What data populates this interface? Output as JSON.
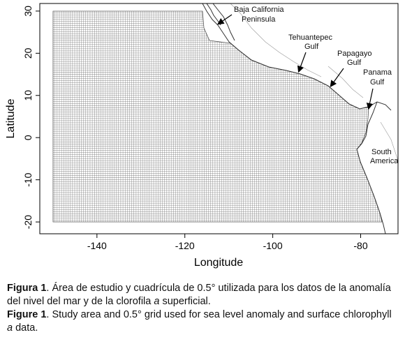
{
  "chart_data": {
    "type": "map",
    "xlabel": "Longitude",
    "ylabel": "Latitude",
    "xlim": [
      -153,
      -71.5
    ],
    "ylim": [
      -22.8,
      31.8
    ],
    "xticks": [
      -140,
      -120,
      -100,
      -80
    ],
    "yticks": [
      -20,
      -10,
      0,
      10,
      20,
      30
    ],
    "annotations": [
      "Baja California",
      "Peninsula",
      "Tehuantepec",
      "Gulf",
      "Papagayo",
      "Gulf",
      "Panama",
      "Gulf",
      "South",
      "America"
    ]
  },
  "caption": {
    "spanish": {
      "label": "Figura 1",
      "text": ". Área de estudio y cuadrícula de 0.5° utilizada para los datos de la anomalía del nivel del mar y de la clorofila ",
      "italic": "a",
      "end": " superficial."
    },
    "english": {
      "label": "Figure 1",
      "text": ". Study area and 0.5° grid used for sea level anomaly and surface chlorophyll ",
      "italic": "a",
      "end": " data."
    }
  }
}
